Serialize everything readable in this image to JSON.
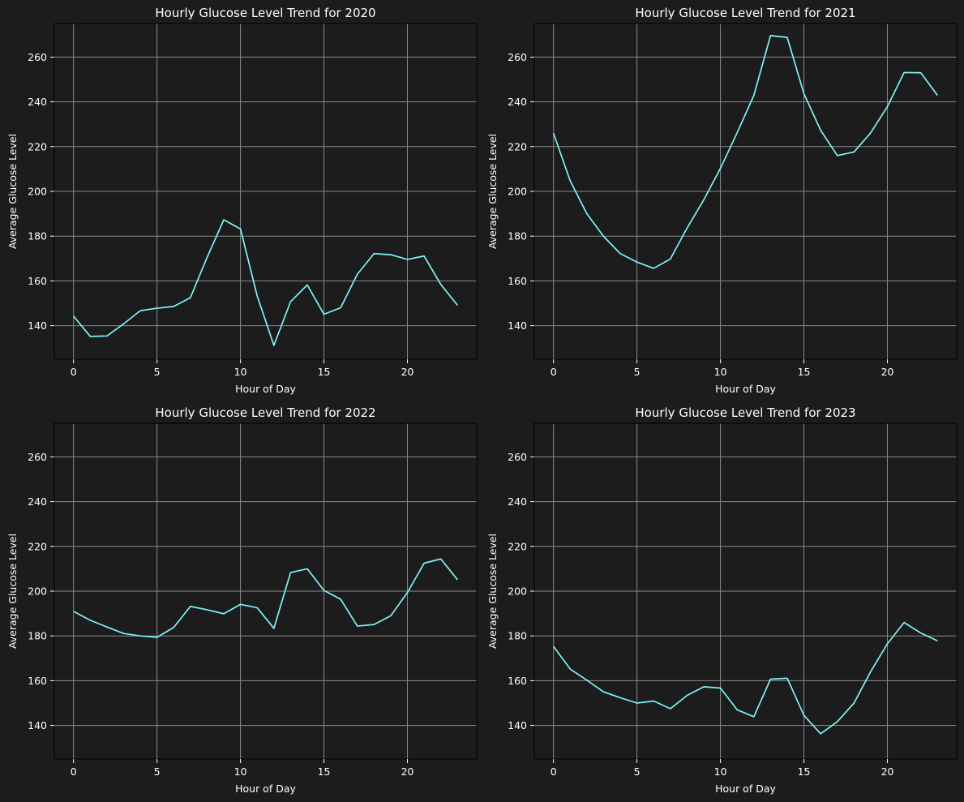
{
  "figure": {
    "background": "#1c1c1c",
    "line_color": "#7ff3f7",
    "grid_color": "#8a8a8a",
    "text_color": "#ffffff"
  },
  "chart_data": [
    {
      "type": "line",
      "title": "Hourly Glucose Level Trend for 2020",
      "xlabel": "Hour of Day",
      "ylabel": "Average Glucose Level",
      "xlim": [
        -1.15,
        24.15
      ],
      "ylim": [
        125,
        275
      ],
      "xticks": [
        0,
        5,
        10,
        15,
        20
      ],
      "yticks": [
        140,
        160,
        180,
        200,
        220,
        240,
        260
      ],
      "grid": true,
      "x": [
        0,
        1,
        2,
        3,
        4,
        5,
        6,
        7,
        8,
        9,
        10,
        11,
        12,
        13,
        14,
        15,
        16,
        17,
        18,
        19,
        20,
        21,
        22,
        23
      ],
      "y": [
        144.3,
        135.2,
        135.4,
        140.8,
        146.7,
        147.8,
        148.6,
        152.5,
        170.5,
        187.3,
        183.2,
        153.3,
        131.2,
        150.7,
        158.2,
        145.1,
        148.0,
        163.0,
        172.2,
        171.7,
        169.6,
        171.1,
        158.4,
        149.1
      ]
    },
    {
      "type": "line",
      "title": "Hourly Glucose Level Trend for 2021",
      "xlabel": "Hour of Day",
      "ylabel": "Average Glucose Level",
      "xlim": [
        -1.15,
        24.15
      ],
      "ylim": [
        125,
        275
      ],
      "xticks": [
        0,
        5,
        10,
        15,
        20
      ],
      "yticks": [
        140,
        160,
        180,
        200,
        220,
        240,
        260
      ],
      "grid": true,
      "x": [
        0,
        1,
        2,
        3,
        4,
        5,
        6,
        7,
        8,
        9,
        10,
        11,
        12,
        13,
        14,
        15,
        16,
        17,
        18,
        19,
        20,
        21,
        22,
        23
      ],
      "y": [
        226.0,
        204.7,
        190.0,
        179.9,
        172.2,
        168.4,
        165.6,
        169.8,
        183.6,
        196.2,
        210.3,
        226.2,
        242.9,
        269.6,
        268.8,
        243.6,
        227.3,
        216.0,
        217.6,
        226.2,
        237.9,
        253.1,
        253.0,
        242.9
      ]
    },
    {
      "type": "line",
      "title": "Hourly Glucose Level Trend for 2022",
      "xlabel": "Hour of Day",
      "ylabel": "Average Glucose Level",
      "xlim": [
        -1.15,
        24.15
      ],
      "ylim": [
        125,
        275
      ],
      "xticks": [
        0,
        5,
        10,
        15,
        20
      ],
      "yticks": [
        140,
        160,
        180,
        200,
        220,
        240,
        260
      ],
      "grid": true,
      "x": [
        0,
        1,
        2,
        3,
        4,
        5,
        6,
        7,
        8,
        9,
        10,
        11,
        12,
        13,
        14,
        15,
        16,
        17,
        18,
        19,
        20,
        21,
        22,
        23
      ],
      "y": [
        191.0,
        187.0,
        184.0,
        181.1,
        180.0,
        179.4,
        183.8,
        193.2,
        191.7,
        189.9,
        194.1,
        192.6,
        183.4,
        208.3,
        210.0,
        200.3,
        196.4,
        184.4,
        185.1,
        189.0,
        199.4,
        212.5,
        214.4,
        205.1
      ]
    },
    {
      "type": "line",
      "title": "Hourly Glucose Level Trend for 2023",
      "xlabel": "Hour of Day",
      "ylabel": "Average Glucose Level",
      "xlim": [
        -1.15,
        24.15
      ],
      "ylim": [
        125,
        275
      ],
      "xticks": [
        0,
        5,
        10,
        15,
        20
      ],
      "yticks": [
        140,
        160,
        180,
        200,
        220,
        240,
        260
      ],
      "grid": true,
      "x": [
        0,
        1,
        2,
        3,
        4,
        5,
        6,
        7,
        8,
        9,
        10,
        11,
        12,
        13,
        14,
        15,
        16,
        17,
        18,
        19,
        20,
        21,
        22,
        23
      ],
      "y": [
        175.3,
        165.2,
        160.2,
        155.0,
        152.4,
        150.0,
        150.9,
        147.5,
        153.4,
        157.3,
        156.7,
        147.0,
        143.9,
        160.7,
        161.1,
        144.5,
        136.3,
        141.7,
        150.0,
        164.1,
        176.5,
        186.0,
        181.3,
        177.8
      ]
    }
  ]
}
